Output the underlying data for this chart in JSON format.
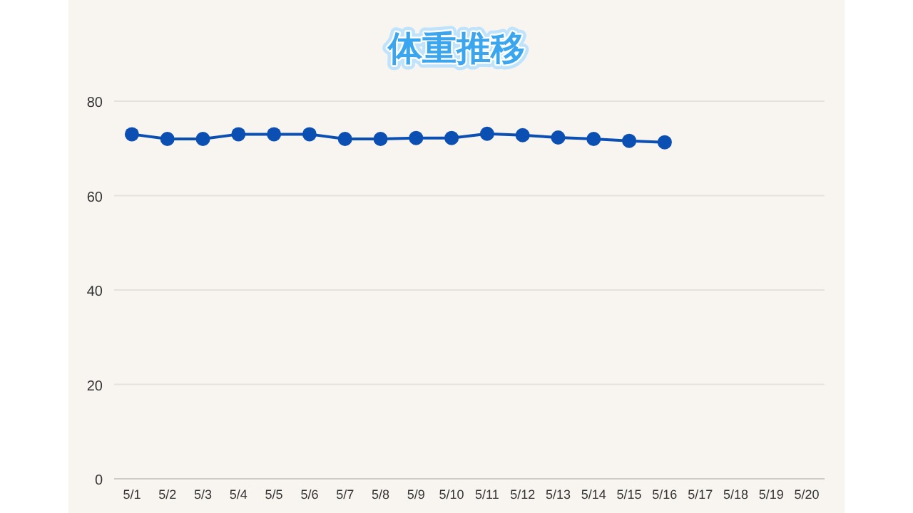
{
  "chart_data": {
    "type": "line",
    "title": "体重推移",
    "categories": [
      "5/1",
      "5/2",
      "5/3",
      "5/4",
      "5/5",
      "5/6",
      "5/7",
      "5/8",
      "5/9",
      "5/10",
      "5/11",
      "5/12",
      "5/13",
      "5/14",
      "5/15",
      "5/16",
      "5/17",
      "5/18",
      "5/19",
      "5/20"
    ],
    "series": [
      {
        "color": "#0b4fb3",
        "values": [
          73,
          72,
          72,
          73,
          73,
          73,
          72,
          72,
          72.2,
          72.2,
          73.1,
          72.8,
          72.3,
          72,
          71.6,
          71.3,
          null,
          null,
          null,
          null
        ]
      }
    ],
    "ylim": [
      0,
      80
    ],
    "yticks": [
      0,
      20,
      40,
      60,
      80
    ],
    "grid": "y",
    "marker": "circle",
    "line_style": "solid"
  }
}
